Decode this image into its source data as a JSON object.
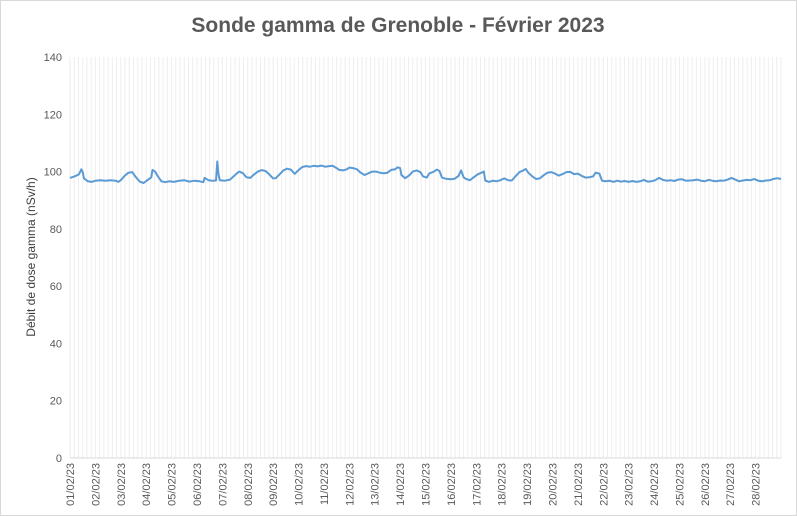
{
  "chart_data": {
    "type": "line",
    "title": "Sonde gamma de Grenoble - Février 2023",
    "xlabel": "",
    "ylabel": "Débit de dose gamma (nSv/h)",
    "ylim": [
      0,
      140
    ],
    "y_ticks": [
      "0",
      "20",
      "40",
      "60",
      "80",
      "100",
      "120",
      "140"
    ],
    "x_tick_labels": [
      "01/02/23",
      "02/02/23",
      "03/02/23",
      "04/02/23",
      "05/02/23",
      "06/02/23",
      "07/02/23",
      "08/02/23",
      "09/02/23",
      "10/02/23",
      "11/02/23",
      "12/02/23",
      "13/02/23",
      "14/02/23",
      "15/02/23",
      "16/02/23",
      "17/02/23",
      "18/02/23",
      "19/02/23",
      "20/02/23",
      "21/02/23",
      "22/02/23",
      "23/02/23",
      "24/02/23",
      "25/02/23",
      "26/02/23",
      "27/02/23",
      "28/02/23"
    ],
    "x_unit": "days since 01/02/23 00:00",
    "grid": {
      "vertical": true,
      "horizontal": false
    },
    "series_color": "#5b9bd5",
    "series": [
      {
        "name": "Débit de dose gamma",
        "points": [
          [
            0.0,
            97.8
          ],
          [
            0.2,
            98.4
          ],
          [
            0.35,
            99.0
          ],
          [
            0.45,
            100.8
          ],
          [
            0.5,
            99.8
          ],
          [
            0.55,
            97.6
          ],
          [
            0.7,
            96.6
          ],
          [
            0.85,
            96.4
          ],
          [
            1.0,
            96.8
          ],
          [
            1.2,
            97.0
          ],
          [
            1.4,
            96.8
          ],
          [
            1.6,
            97.0
          ],
          [
            1.8,
            96.8
          ],
          [
            1.9,
            96.4
          ],
          [
            2.0,
            97.0
          ],
          [
            2.15,
            98.5
          ],
          [
            2.3,
            99.6
          ],
          [
            2.45,
            99.8
          ],
          [
            2.6,
            98.0
          ],
          [
            2.75,
            96.5
          ],
          [
            2.9,
            96.0
          ],
          [
            3.05,
            97.0
          ],
          [
            3.2,
            98.0
          ],
          [
            3.25,
            100.6
          ],
          [
            3.35,
            100.0
          ],
          [
            3.45,
            98.5
          ],
          [
            3.6,
            96.6
          ],
          [
            3.75,
            96.3
          ],
          [
            3.9,
            96.6
          ],
          [
            4.1,
            96.4
          ],
          [
            4.3,
            96.8
          ],
          [
            4.5,
            97.0
          ],
          [
            4.7,
            96.5
          ],
          [
            4.9,
            96.8
          ],
          [
            5.1,
            96.6
          ],
          [
            5.25,
            96.3
          ],
          [
            5.3,
            97.8
          ],
          [
            5.45,
            97.0
          ],
          [
            5.6,
            96.8
          ],
          [
            5.75,
            96.9
          ],
          [
            5.8,
            103.5
          ],
          [
            5.85,
            99.0
          ],
          [
            5.9,
            97.0
          ],
          [
            6.1,
            96.8
          ],
          [
            6.3,
            97.2
          ],
          [
            6.5,
            98.8
          ],
          [
            6.65,
            100.0
          ],
          [
            6.8,
            99.5
          ],
          [
            6.95,
            98.0
          ],
          [
            7.1,
            97.8
          ],
          [
            7.25,
            99.0
          ],
          [
            7.4,
            100.0
          ],
          [
            7.55,
            100.5
          ],
          [
            7.7,
            100.2
          ],
          [
            7.85,
            99.0
          ],
          [
            8.0,
            97.6
          ],
          [
            8.1,
            97.7
          ],
          [
            8.25,
            99.0
          ],
          [
            8.4,
            100.4
          ],
          [
            8.55,
            101.0
          ],
          [
            8.7,
            100.7
          ],
          [
            8.85,
            99.2
          ],
          [
            9.0,
            100.5
          ],
          [
            9.15,
            101.6
          ],
          [
            9.3,
            101.9
          ],
          [
            9.45,
            101.7
          ],
          [
            9.6,
            102.0
          ],
          [
            9.75,
            101.8
          ],
          [
            9.9,
            102.1
          ],
          [
            10.05,
            101.7
          ],
          [
            10.2,
            101.9
          ],
          [
            10.35,
            102.0
          ],
          [
            10.5,
            101.2
          ],
          [
            10.6,
            100.6
          ],
          [
            10.75,
            100.4
          ],
          [
            10.9,
            100.8
          ],
          [
            11.0,
            101.4
          ],
          [
            11.15,
            101.2
          ],
          [
            11.3,
            100.8
          ],
          [
            11.45,
            99.6
          ],
          [
            11.6,
            98.8
          ],
          [
            11.75,
            99.4
          ],
          [
            11.9,
            100.0
          ],
          [
            12.05,
            100.0
          ],
          [
            12.2,
            99.6
          ],
          [
            12.35,
            99.4
          ],
          [
            12.5,
            99.6
          ],
          [
            12.65,
            100.6
          ],
          [
            12.8,
            100.8
          ],
          [
            12.9,
            101.5
          ],
          [
            13.0,
            101.2
          ],
          [
            13.05,
            98.8
          ],
          [
            13.2,
            97.7
          ],
          [
            13.35,
            98.6
          ],
          [
            13.5,
            100.0
          ],
          [
            13.65,
            100.4
          ],
          [
            13.8,
            99.8
          ],
          [
            13.9,
            98.3
          ],
          [
            14.05,
            97.9
          ],
          [
            14.15,
            99.4
          ],
          [
            14.3,
            99.8
          ],
          [
            14.45,
            100.7
          ],
          [
            14.55,
            100.2
          ],
          [
            14.65,
            97.9
          ],
          [
            14.8,
            97.5
          ],
          [
            15.0,
            97.3
          ],
          [
            15.15,
            97.5
          ],
          [
            15.3,
            98.5
          ],
          [
            15.4,
            100.4
          ],
          [
            15.5,
            98.0
          ],
          [
            15.6,
            97.4
          ],
          [
            15.75,
            97.0
          ],
          [
            15.9,
            98.0
          ],
          [
            16.05,
            99.0
          ],
          [
            16.2,
            99.6
          ],
          [
            16.3,
            100.0
          ],
          [
            16.35,
            96.9
          ],
          [
            16.5,
            96.4
          ],
          [
            16.65,
            96.8
          ],
          [
            16.8,
            96.6
          ],
          [
            16.95,
            97.0
          ],
          [
            17.1,
            97.6
          ],
          [
            17.25,
            97.0
          ],
          [
            17.4,
            96.9
          ],
          [
            17.55,
            98.4
          ],
          [
            17.7,
            99.8
          ],
          [
            17.85,
            100.4
          ],
          [
            17.95,
            100.9
          ],
          [
            18.05,
            99.6
          ],
          [
            18.2,
            98.4
          ],
          [
            18.35,
            97.4
          ],
          [
            18.5,
            97.6
          ],
          [
            18.65,
            98.7
          ],
          [
            18.8,
            99.6
          ],
          [
            18.95,
            99.8
          ],
          [
            19.1,
            99.3
          ],
          [
            19.25,
            98.6
          ],
          [
            19.4,
            99.1
          ],
          [
            19.55,
            99.8
          ],
          [
            19.7,
            99.9
          ],
          [
            19.85,
            99.1
          ],
          [
            20.0,
            99.3
          ],
          [
            20.15,
            98.5
          ],
          [
            20.3,
            97.9
          ],
          [
            20.45,
            98.0
          ],
          [
            20.6,
            98.3
          ],
          [
            20.7,
            99.6
          ],
          [
            20.85,
            99.3
          ],
          [
            20.95,
            96.8
          ],
          [
            21.1,
            96.6
          ],
          [
            21.25,
            96.8
          ],
          [
            21.4,
            96.4
          ],
          [
            21.55,
            96.8
          ],
          [
            21.7,
            96.5
          ],
          [
            21.85,
            96.7
          ],
          [
            22.0,
            96.4
          ],
          [
            22.15,
            96.7
          ],
          [
            22.3,
            96.4
          ],
          [
            22.45,
            96.6
          ],
          [
            22.6,
            97.1
          ],
          [
            22.75,
            96.5
          ],
          [
            22.9,
            96.6
          ],
          [
            23.05,
            97.0
          ],
          [
            23.2,
            97.8
          ],
          [
            23.35,
            97.1
          ],
          [
            23.5,
            96.8
          ],
          [
            23.65,
            97.0
          ],
          [
            23.8,
            96.7
          ],
          [
            23.95,
            97.2
          ],
          [
            24.1,
            97.3
          ],
          [
            24.25,
            96.8
          ],
          [
            24.4,
            96.9
          ],
          [
            24.55,
            97.0
          ],
          [
            24.7,
            97.2
          ],
          [
            24.85,
            96.8
          ],
          [
            25.0,
            96.6
          ],
          [
            25.15,
            97.1
          ],
          [
            25.3,
            96.8
          ],
          [
            25.45,
            96.6
          ],
          [
            25.6,
            96.9
          ],
          [
            25.75,
            96.8
          ],
          [
            25.9,
            97.2
          ],
          [
            26.05,
            97.8
          ],
          [
            26.2,
            97.2
          ],
          [
            26.35,
            96.6
          ],
          [
            26.5,
            96.9
          ],
          [
            26.65,
            97.1
          ],
          [
            26.8,
            97.0
          ],
          [
            26.95,
            97.4
          ],
          [
            27.1,
            96.8
          ],
          [
            27.25,
            96.6
          ],
          [
            27.4,
            96.9
          ],
          [
            27.55,
            97.0
          ],
          [
            27.7,
            97.4
          ],
          [
            27.85,
            97.7
          ],
          [
            28.0,
            97.4
          ]
        ]
      }
    ]
  }
}
